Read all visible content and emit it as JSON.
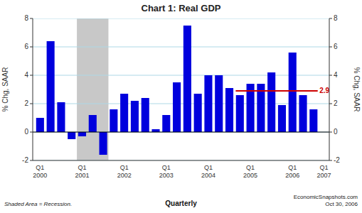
{
  "chart_data": {
    "type": "bar",
    "title": "Chart 1: Real GDP",
    "ylabel": "% Chg, SAAR",
    "y2label": "% Chg, SAAR",
    "categories": [
      "Q1\n2000",
      null,
      null,
      null,
      "Q1\n2001",
      null,
      null,
      null,
      "Q1\n2002",
      null,
      null,
      null,
      "Q1\n2003",
      null,
      null,
      null,
      "Q1\n2004",
      null,
      null,
      null,
      "Q1\n2005",
      null,
      null,
      null,
      "Q1\n2006",
      null,
      null,
      "Q1\n2007"
    ],
    "values": [
      1.0,
      6.4,
      2.1,
      -0.5,
      -0.3,
      1.2,
      -1.6,
      1.6,
      2.7,
      2.2,
      2.4,
      0.2,
      1.2,
      3.5,
      7.5,
      2.7,
      4.0,
      4.0,
      3.1,
      2.6,
      3.4,
      3.4,
      4.2,
      1.9,
      5.6,
      2.6,
      1.6,
      null
    ],
    "color": "#0000DD",
    "ylim": [
      -2,
      8
    ],
    "yticks": [
      -2,
      0,
      2,
      4,
      6,
      8
    ],
    "y2lim": [
      -2,
      8
    ],
    "y2ticks": [
      -2,
      0,
      2,
      4,
      6,
      8
    ],
    "grid": true,
    "shaded_range": {
      "start": 4,
      "end": 6,
      "color": "#C8C8C8"
    },
    "reference_line": {
      "value": 2.9,
      "label": "2.9",
      "start": 19,
      "end": 26,
      "color": "#CC0000"
    },
    "footer": {
      "left": "Shaded Area = Recession.",
      "center": "Quarterly",
      "right": "EconomicSnapshots.com\nOct 30, 2006"
    }
  }
}
